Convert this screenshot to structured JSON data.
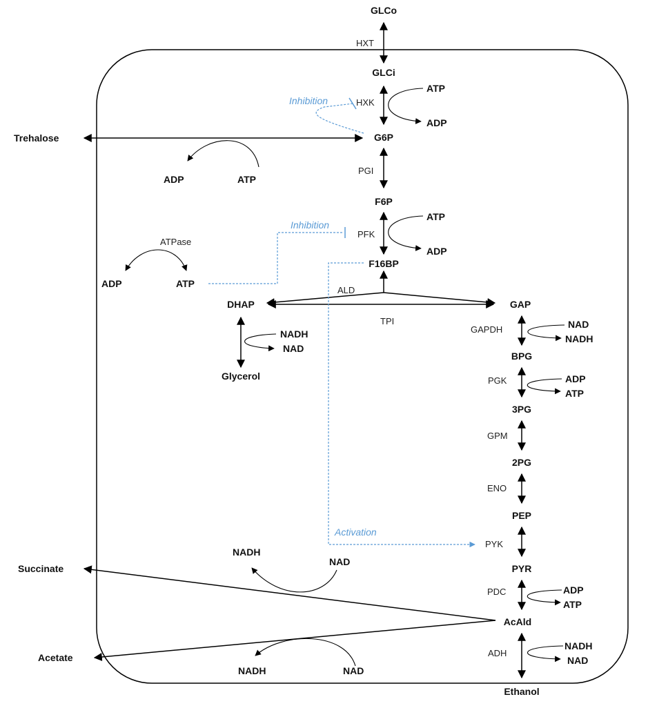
{
  "metabolites": {
    "glco": "GLCo",
    "glci": "GLCi",
    "g6p": "G6P",
    "f6p": "F6P",
    "f16bp": "F16BP",
    "dhap": "DHAP",
    "gap": "GAP",
    "glycerol": "Glycerol",
    "bpg": "BPG",
    "pg3": "3PG",
    "pg2": "2PG",
    "pep": "PEP",
    "pyr": "PYR",
    "acald": "AcAld",
    "ethanol": "Ethanol",
    "trehalose": "Trehalose",
    "succinate": "Succinate",
    "acetate": "Acetate"
  },
  "enzymes": {
    "hxt": "HXT",
    "hxk": "HXK",
    "pgi": "PGI",
    "pfk": "PFK",
    "ald": "ALD",
    "tpi": "TPI",
    "gapdh": "GAPDH",
    "pgk": "PGK",
    "gpm": "GPM",
    "eno": "ENO",
    "pyk": "PYK",
    "pdc": "PDC",
    "adh": "ADH",
    "atpase": "ATPase"
  },
  "cofactors": {
    "hxk_in": "ATP",
    "hxk_out": "ADP",
    "tre_in": "ATP",
    "tre_out": "ADP",
    "pfk_in": "ATP",
    "pfk_out": "ADP",
    "atpase_in": "ATP",
    "atpase_out": "ADP",
    "gly_in": "NADH",
    "gly_out": "NAD",
    "gapdh_in": "NAD",
    "gapdh_out": "NADH",
    "pgk_in": "ADP",
    "pgk_out": "ATP",
    "pdc_in": "ADP",
    "pdc_out": "ATP",
    "adh_in": "NADH",
    "adh_out": "NAD",
    "succ_in": "NAD",
    "succ_out": "NADH",
    "acet_in": "NAD",
    "acet_out": "NADH"
  },
  "regulation": {
    "hxk_inhibition": "Inhibition",
    "pfk_inhibition": "Inhibition",
    "pyk_activation": "Activation"
  },
  "colors": {
    "regulation": "#5b9bd5",
    "line": "#000000"
  }
}
